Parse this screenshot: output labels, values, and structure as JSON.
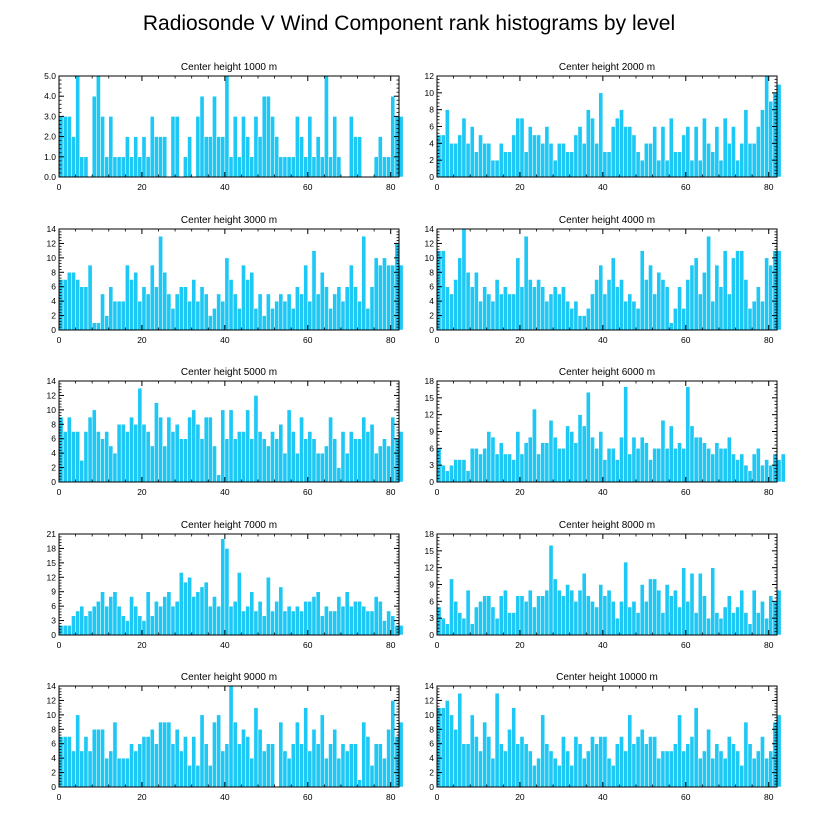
{
  "title": "Radiosonde V Wind Component rank histograms by level",
  "bar_color": "#1EC8F5",
  "chart_data": [
    {
      "type": "bar",
      "title": "Center height 1000 m",
      "xlim": [
        0,
        82
      ],
      "ylim": [
        0,
        5
      ],
      "xticks": [
        0,
        20,
        40,
        60,
        80
      ],
      "yticks": [
        "0.0",
        "1.0",
        "2.0",
        "3.0",
        "4.0",
        "5.0"
      ],
      "values": [
        3,
        3,
        3,
        2,
        5,
        1,
        1,
        0,
        4,
        5,
        3,
        1,
        3,
        1,
        1,
        1,
        2,
        1,
        2,
        1,
        2,
        1,
        3,
        2,
        2,
        2,
        0,
        3,
        3,
        0,
        1,
        2,
        0,
        3,
        4,
        2,
        2,
        4,
        2,
        2,
        5,
        1,
        3,
        1,
        3,
        2,
        1,
        3,
        2,
        4,
        4,
        3,
        2,
        1,
        1,
        1,
        1,
        3,
        2,
        1,
        3,
        1,
        2,
        1,
        5,
        1,
        3,
        1,
        0,
        0,
        3,
        2,
        2,
        0,
        0,
        0,
        1,
        2,
        1,
        1,
        4,
        3,
        3
      ]
    },
    {
      "type": "bar",
      "title": "Center height 2000 m",
      "xlim": [
        0,
        82
      ],
      "ylim": [
        0,
        12
      ],
      "xticks": [
        0,
        20,
        40,
        60,
        80
      ],
      "yticks": [
        "0",
        "2",
        "4",
        "6",
        "8",
        "10",
        "12"
      ],
      "values": [
        5,
        5,
        8,
        4,
        4,
        5,
        7,
        4,
        6,
        3,
        5,
        4,
        4,
        2,
        2,
        4,
        3,
        3,
        5,
        7,
        7,
        3,
        6,
        5,
        5,
        4,
        6,
        4,
        2,
        4,
        4,
        3,
        3,
        5,
        6,
        4,
        8,
        7,
        4,
        10,
        3,
        3,
        6,
        7,
        8,
        6,
        6,
        5,
        3,
        2,
        4,
        4,
        6,
        2,
        6,
        2,
        7,
        3,
        3,
        5,
        6,
        2,
        6,
        2,
        7,
        4,
        3,
        6,
        2,
        7,
        4,
        6,
        2,
        4,
        8,
        4,
        4,
        6,
        8,
        12,
        9,
        10,
        11
      ]
    },
    {
      "type": "bar",
      "title": "Center height 3000 m",
      "xlim": [
        0,
        82
      ],
      "ylim": [
        0,
        14
      ],
      "xticks": [
        0,
        20,
        40,
        60,
        80
      ],
      "yticks": [
        "0",
        "2",
        "4",
        "6",
        "8",
        "10",
        "12",
        "14"
      ],
      "values": [
        7,
        7,
        8,
        8,
        7,
        6,
        6,
        9,
        1,
        1,
        5,
        2,
        6,
        4,
        4,
        4,
        9,
        7,
        8,
        4,
        6,
        5,
        9,
        6,
        13,
        8,
        5,
        3,
        5,
        6,
        6,
        4,
        7,
        4,
        6,
        5,
        2,
        3,
        5,
        4,
        10,
        7,
        5,
        3,
        9,
        7,
        8,
        3,
        5,
        2,
        5,
        3,
        4,
        5,
        4,
        5,
        3,
        6,
        5,
        9,
        4,
        11,
        5,
        8,
        6,
        3,
        5,
        6,
        4,
        6,
        9,
        6,
        4,
        13,
        3,
        6,
        10,
        9,
        10,
        9,
        9,
        12,
        9
      ]
    },
    {
      "type": "bar",
      "title": "Center height 4000 m",
      "xlim": [
        0,
        82
      ],
      "ylim": [
        0,
        14
      ],
      "xticks": [
        0,
        20,
        40,
        60,
        80
      ],
      "yticks": [
        "0",
        "2",
        "4",
        "6",
        "8",
        "10",
        "12",
        "14"
      ],
      "values": [
        11,
        11,
        6,
        5,
        7,
        10,
        14,
        8,
        6,
        8,
        4,
        6,
        5,
        4,
        7,
        5,
        6,
        5,
        5,
        10,
        6,
        13,
        7,
        6,
        7,
        6,
        4,
        5,
        6,
        5,
        6,
        4,
        3,
        4,
        2,
        2,
        3,
        5,
        7,
        9,
        5,
        7,
        10,
        6,
        7,
        4,
        5,
        4,
        3,
        11,
        7,
        9,
        5,
        8,
        7,
        6,
        1,
        3,
        6,
        3,
        7,
        9,
        10,
        5,
        8,
        13,
        4,
        9,
        6,
        11,
        5,
        10,
        11,
        11,
        7,
        3,
        4,
        6,
        4,
        10,
        9,
        11,
        11
      ]
    },
    {
      "type": "bar",
      "title": "Center height 5000 m",
      "xlim": [
        0,
        82
      ],
      "ylim": [
        0,
        14
      ],
      "xticks": [
        0,
        20,
        40,
        60,
        80
      ],
      "yticks": [
        "0",
        "2",
        "4",
        "6",
        "8",
        "10",
        "12",
        "14"
      ],
      "values": [
        9,
        7,
        9,
        7,
        7,
        3,
        7,
        9,
        10,
        7,
        6,
        7,
        5,
        4,
        8,
        8,
        7,
        9,
        8,
        13,
        8,
        7,
        5,
        11,
        9,
        5,
        9,
        7,
        8,
        6,
        6,
        9,
        10,
        8,
        6,
        9,
        9,
        5,
        1,
        10,
        6,
        10,
        6,
        7,
        7,
        10,
        6,
        12,
        7,
        6,
        5,
        7,
        6,
        8,
        4,
        10,
        7,
        4,
        9,
        6,
        7,
        6,
        4,
        4,
        5,
        9,
        6,
        2,
        7,
        4,
        7,
        6,
        6,
        9,
        7,
        8,
        4,
        5,
        6,
        5,
        9,
        6,
        7
      ]
    },
    {
      "type": "bar",
      "title": "Center height 6000 m",
      "xlim": [
        0,
        82
      ],
      "ylim": [
        0,
        18
      ],
      "xticks": [
        0,
        20,
        40,
        60,
        80
      ],
      "yticks": [
        "0",
        "3",
        "6",
        "9",
        "12",
        "15",
        "18"
      ],
      "values": [
        6,
        3,
        2,
        3,
        4,
        4,
        4,
        2,
        6,
        6,
        5,
        6,
        9,
        8,
        5,
        7,
        5,
        5,
        4,
        9,
        5,
        7,
        8,
        13,
        5,
        7,
        7,
        11,
        8,
        6,
        6,
        10,
        9,
        7,
        12,
        10,
        16,
        8,
        6,
        9,
        4,
        6,
        6,
        4,
        8,
        17,
        5,
        8,
        6,
        8,
        7,
        4,
        6,
        6,
        11,
        6,
        10,
        6,
        7,
        6,
        17,
        10,
        8,
        8,
        7,
        6,
        5,
        7,
        6,
        6,
        8,
        5,
        4,
        5,
        3,
        2,
        5,
        6,
        3,
        4,
        3,
        5,
        4,
        5
      ]
    },
    {
      "type": "bar",
      "title": "Center height 7000 m",
      "xlim": [
        0,
        82
      ],
      "ylim": [
        0,
        21
      ],
      "xticks": [
        0,
        20,
        40,
        60,
        80
      ],
      "yticks": [
        "0",
        "3",
        "6",
        "9",
        "12",
        "15",
        "18",
        "21"
      ],
      "values": [
        2,
        2,
        2,
        4,
        5,
        6,
        4,
        5,
        6,
        7,
        9,
        6,
        8,
        9,
        6,
        4,
        3,
        8,
        6,
        4,
        3,
        9,
        4,
        7,
        6,
        8,
        9,
        6,
        7,
        13,
        11,
        12,
        8,
        9,
        10,
        11,
        6,
        8,
        6,
        20,
        18,
        6,
        7,
        13,
        5,
        6,
        9,
        5,
        7,
        4,
        12,
        5,
        7,
        10,
        5,
        6,
        5,
        6,
        5,
        7,
        7,
        8,
        9,
        4,
        6,
        5,
        5,
        8,
        6,
        9,
        6,
        7,
        7,
        6,
        5,
        5,
        8,
        7,
        3,
        5,
        4,
        2,
        2
      ]
    },
    {
      "type": "bar",
      "title": "Center height 8000 m",
      "xlim": [
        0,
        82
      ],
      "ylim": [
        0,
        18
      ],
      "xticks": [
        0,
        20,
        40,
        60,
        80
      ],
      "yticks": [
        "0",
        "3",
        "6",
        "9",
        "12",
        "15",
        "18"
      ],
      "values": [
        5,
        3,
        2,
        10,
        6,
        4,
        3,
        8,
        2,
        5,
        6,
        7,
        7,
        5,
        3,
        7,
        8,
        4,
        4,
        7,
        7,
        6,
        8,
        5,
        7,
        7,
        8,
        16,
        10,
        8,
        7,
        9,
        8,
        6,
        8,
        11,
        7,
        6,
        5,
        9,
        7,
        8,
        6,
        3,
        6,
        13,
        5,
        6,
        4,
        9,
        6,
        10,
        10,
        8,
        4,
        9,
        7,
        8,
        5,
        12,
        6,
        11,
        4,
        11,
        7,
        3,
        12,
        4,
        3,
        5,
        7,
        4,
        5,
        8,
        4,
        2,
        8,
        4,
        6,
        3,
        7,
        6,
        8
      ]
    },
    {
      "type": "bar",
      "title": "Center height 9000 m",
      "xlim": [
        0,
        82
      ],
      "ylim": [
        0,
        14
      ],
      "xticks": [
        0,
        20,
        40,
        60,
        80
      ],
      "yticks": [
        "0",
        "2",
        "4",
        "6",
        "8",
        "10",
        "12",
        "14"
      ],
      "values": [
        7,
        7,
        7,
        5,
        10,
        5,
        7,
        5,
        8,
        8,
        8,
        4,
        5,
        9,
        4,
        4,
        4,
        6,
        5,
        6,
        7,
        7,
        8,
        6,
        9,
        9,
        9,
        6,
        8,
        5,
        7,
        3,
        7,
        3,
        10,
        6,
        3,
        9,
        10,
        5,
        6,
        14,
        9,
        6,
        8,
        7,
        4,
        11,
        8,
        5,
        6,
        6,
        0,
        9,
        5,
        4,
        6,
        9,
        6,
        11,
        5,
        8,
        6,
        10,
        4,
        6,
        8,
        4,
        6,
        5,
        6,
        6,
        1,
        9,
        7,
        3,
        6,
        6,
        4,
        8,
        12,
        7,
        9
      ]
    },
    {
      "type": "bar",
      "title": "Center height 10000 m",
      "xlim": [
        0,
        82
      ],
      "ylim": [
        0,
        14
      ],
      "xticks": [
        0,
        20,
        40,
        60,
        80
      ],
      "yticks": [
        "0",
        "2",
        "4",
        "6",
        "8",
        "10",
        "12",
        "14"
      ],
      "values": [
        11,
        11,
        12,
        10,
        8,
        13,
        6,
        6,
        10,
        7,
        5,
        9,
        7,
        4,
        13,
        6,
        5,
        8,
        11,
        6,
        7,
        6,
        5,
        3,
        4,
        10,
        6,
        5,
        4,
        3,
        7,
        5,
        3,
        7,
        6,
        4,
        5,
        7,
        6,
        7,
        7,
        4,
        3,
        6,
        7,
        5,
        10,
        6,
        7,
        8,
        6,
        7,
        7,
        4,
        5,
        5,
        5,
        6,
        10,
        5,
        6,
        7,
        11,
        4,
        5,
        8,
        4,
        6,
        5,
        4,
        7,
        6,
        5,
        3,
        9,
        6,
        4,
        5,
        7,
        4,
        5,
        9,
        10
      ]
    }
  ]
}
